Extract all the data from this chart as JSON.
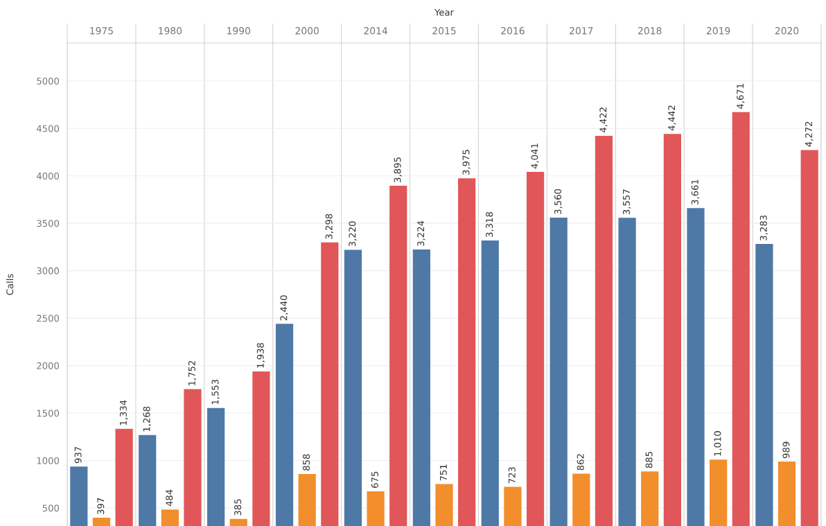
{
  "chart_data": {
    "type": "bar",
    "xlabel": "Year",
    "ylabel": "Calls",
    "categories": [
      "1975",
      "1980",
      "1990",
      "2000",
      "2014",
      "2015",
      "2016",
      "2017",
      "2018",
      "2019",
      "2020"
    ],
    "series": [
      {
        "color": "#4e79a7",
        "values": [
          937,
          1268,
          1553,
          2440,
          3220,
          3224,
          3318,
          3560,
          3557,
          3661,
          3283
        ],
        "value_labels": [
          "937",
          "1,268",
          "1,553",
          "2,440",
          "3,220",
          "3,224",
          "3,318",
          "3,560",
          "3,557",
          "3,661",
          "3,283"
        ]
      },
      {
        "color": "#f28e2b",
        "values": [
          397,
          484,
          385,
          858,
          675,
          751,
          723,
          862,
          885,
          1010,
          989
        ],
        "value_labels": [
          "397",
          "484",
          "385",
          "858",
          "675",
          "751",
          "723",
          "862",
          "885",
          "1,010",
          "989"
        ]
      },
      {
        "color": "#e15759",
        "values": [
          1334,
          1752,
          1938,
          3298,
          3895,
          3975,
          4041,
          4422,
          4442,
          4671,
          4272
        ],
        "value_labels": [
          "1,334",
          "1,752",
          "1,938",
          "3,298",
          "3,895",
          "3,975",
          "4,041",
          "4,422",
          "4,442",
          "4,671",
          "4,272"
        ]
      }
    ],
    "ylim": [
      310,
      5400
    ],
    "yticks": [
      500,
      1000,
      1500,
      2000,
      2500,
      3000,
      3500,
      4000,
      4500,
      5000
    ],
    "grid": "y"
  }
}
